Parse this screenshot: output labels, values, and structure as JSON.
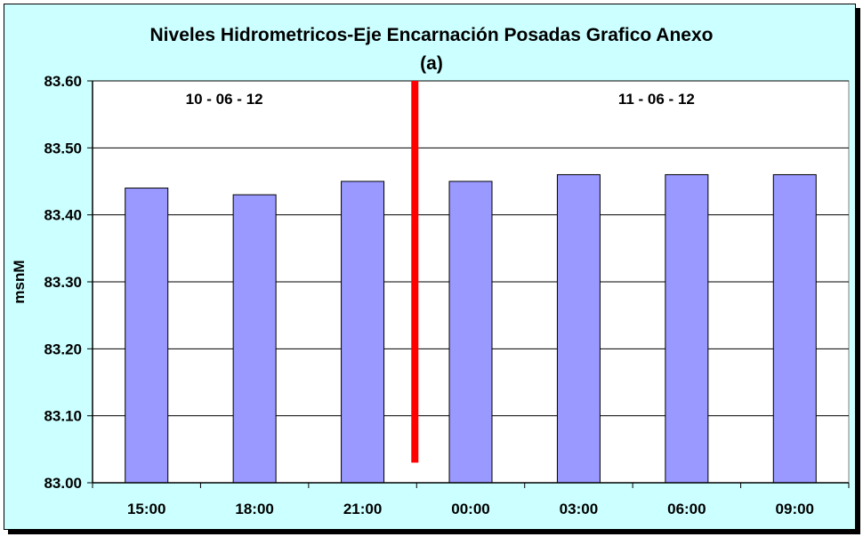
{
  "chart_data": {
    "type": "bar",
    "title": "Niveles Hidrometricos-Eje Encarnación Posadas Grafico Anexo",
    "subtitle": "(a)",
    "ylabel": "msnM",
    "xlabel": "",
    "categories": [
      "15:00",
      "18:00",
      "21:00",
      "00:00",
      "03:00",
      "06:00",
      "09:00"
    ],
    "values": [
      83.44,
      83.43,
      83.45,
      83.45,
      83.46,
      83.46,
      83.46
    ],
    "ylim": [
      83.0,
      83.6
    ],
    "yticks": [
      "83.00",
      "83.10",
      "83.20",
      "83.30",
      "83.40",
      "83.50",
      "83.60"
    ],
    "grid": true,
    "legend": "none",
    "annotations": [
      {
        "text": "10 - 06 - 12",
        "category": "18:00"
      },
      {
        "text": "11 - 06 - 12",
        "category": "06:00"
      }
    ],
    "separator": {
      "between": [
        "21:00",
        "00:00"
      ],
      "from": 83.03,
      "to": 83.6,
      "color": "#ff0000"
    },
    "colors": {
      "bar": "#9999ff",
      "plot_bg": "#ffffff",
      "chart_bg": "#ccffff",
      "separator": "#ff0000"
    }
  }
}
